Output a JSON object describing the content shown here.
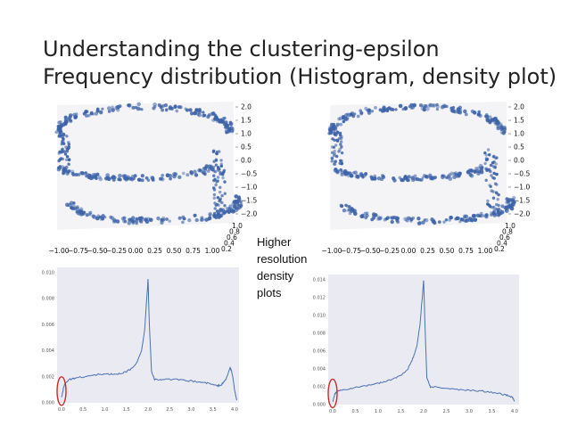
{
  "title": {
    "line1": "Understanding the clustering-epsilon",
    "line2": "Frequency distribution (Histogram, density plot)"
  },
  "side_note": {
    "line1": "Higher",
    "line2": "resolution",
    "line3": "density",
    "line4": "plots"
  },
  "colors": {
    "point": "#3d63a8",
    "line": "#4a72b0",
    "highlight": "#cc2a2a",
    "plot_bg": "#eaeaf2"
  },
  "chart_data": [
    {
      "type": "scatter",
      "three_d": true,
      "x_ticks": [
        "−1.00",
        "−0.75",
        "−0.50",
        "−0.25",
        "0.00",
        "0.25",
        "0.50",
        "0.75",
        "1.00"
      ],
      "z_ticks": [
        "2.0",
        "1.5",
        "1.0",
        "0.5",
        "0.0",
        "−0.5",
        "−1.0",
        "−1.5",
        "−2.0"
      ],
      "y_ticks": [
        "1.0",
        "0.8",
        "0.6",
        "0.4",
        "0.2"
      ]
    },
    {
      "type": "scatter",
      "three_d": true,
      "x_ticks": [
        "−1.00",
        "−0.75",
        "−0.50",
        "−0.25",
        "0.00",
        "0.25",
        "0.50",
        "0.75",
        "1.00"
      ],
      "z_ticks": [
        "2.0",
        "1.5",
        "1.0",
        "0.5",
        "0.0",
        "−0.5",
        "−1.0",
        "−1.5",
        "−2.0"
      ],
      "y_ticks": [
        "1.0",
        "0.8",
        "0.6",
        "0.4",
        "0.2"
      ]
    },
    {
      "type": "line",
      "x_ticks": [
        "0.0",
        "0.5",
        "1.0",
        "1.5",
        "2.0",
        "2.5",
        "3.0",
        "3.5",
        "4.0"
      ],
      "y_ticks": [
        "0.010",
        "0.008",
        "0.006",
        "0.004",
        "0.002",
        "0.000"
      ],
      "xlim": [
        0,
        4.0
      ],
      "ylim": [
        0,
        0.01
      ],
      "grid": false,
      "points": [
        [
          0.0,
          0.0004
        ],
        [
          0.05,
          0.0012
        ],
        [
          0.1,
          0.0016
        ],
        [
          0.2,
          0.0018
        ],
        [
          0.3,
          0.0019
        ],
        [
          0.5,
          0.002
        ],
        [
          0.7,
          0.0021
        ],
        [
          0.9,
          0.0022
        ],
        [
          1.1,
          0.0022
        ],
        [
          1.3,
          0.0022
        ],
        [
          1.5,
          0.0024
        ],
        [
          1.65,
          0.0027
        ],
        [
          1.75,
          0.0032
        ],
        [
          1.85,
          0.004
        ],
        [
          1.92,
          0.0055
        ],
        [
          1.97,
          0.008
        ],
        [
          2.0,
          0.0095
        ],
        [
          2.03,
          0.006
        ],
        [
          2.08,
          0.0024
        ],
        [
          2.15,
          0.0018
        ],
        [
          2.3,
          0.0018
        ],
        [
          2.6,
          0.0018
        ],
        [
          2.9,
          0.0017
        ],
        [
          3.2,
          0.0016
        ],
        [
          3.4,
          0.0015
        ],
        [
          3.6,
          0.0013
        ],
        [
          3.7,
          0.0014
        ],
        [
          3.8,
          0.0018
        ],
        [
          3.9,
          0.0027
        ],
        [
          3.95,
          0.0022
        ],
        [
          4.0,
          0.001
        ],
        [
          4.05,
          0.0002
        ]
      ],
      "highlight_x": 0.0
    },
    {
      "type": "line",
      "x_ticks": [
        "0.0",
        "0.5",
        "1.0",
        "1.5",
        "2.0",
        "2.5",
        "3.0",
        "3.5",
        "4.0"
      ],
      "y_ticks": [
        "0.014",
        "0.012",
        "0.010",
        "0.008",
        "0.006",
        "0.004",
        "0.002",
        "0.000"
      ],
      "xlim": [
        0,
        4.0
      ],
      "ylim": [
        0,
        0.014
      ],
      "grid": false,
      "points": [
        [
          0.0,
          0.0003
        ],
        [
          0.05,
          0.0012
        ],
        [
          0.1,
          0.0015
        ],
        [
          0.3,
          0.0017
        ],
        [
          0.5,
          0.0019
        ],
        [
          0.7,
          0.0021
        ],
        [
          0.9,
          0.0023
        ],
        [
          1.1,
          0.0025
        ],
        [
          1.3,
          0.0028
        ],
        [
          1.5,
          0.0033
        ],
        [
          1.65,
          0.004
        ],
        [
          1.75,
          0.005
        ],
        [
          1.85,
          0.0065
        ],
        [
          1.92,
          0.009
        ],
        [
          1.97,
          0.012
        ],
        [
          2.0,
          0.014
        ],
        [
          2.03,
          0.009
        ],
        [
          2.07,
          0.003
        ],
        [
          2.15,
          0.002
        ],
        [
          2.4,
          0.0019
        ],
        [
          2.7,
          0.0017
        ],
        [
          3.0,
          0.0016
        ],
        [
          3.3,
          0.0015
        ],
        [
          3.6,
          0.0013
        ],
        [
          3.8,
          0.0011
        ],
        [
          3.95,
          0.0008
        ],
        [
          4.0,
          0.0004
        ]
      ],
      "highlight_x": 0.0
    }
  ]
}
